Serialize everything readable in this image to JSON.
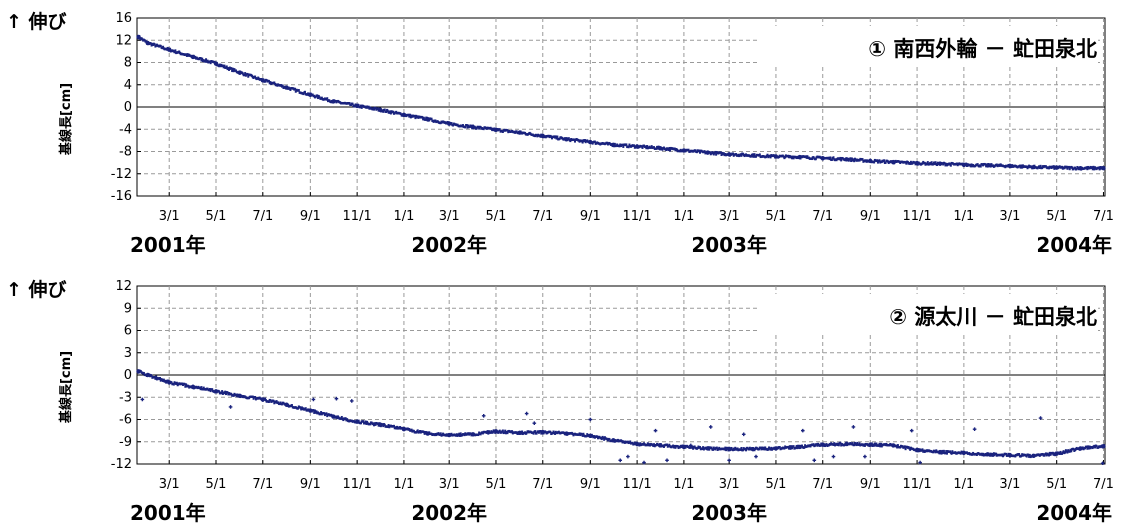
{
  "chart_data": [
    {
      "type": "scatter",
      "title": "① 南西外輪 － 虻田泉北",
      "ylabel": "基線長[cm]",
      "ylabel_note": "↑ 伸び",
      "ylim": [
        -16,
        16
      ],
      "yticks": [
        "16",
        "12",
        "8",
        "4",
        "0",
        "-4",
        "-8",
        "-12",
        "-16"
      ],
      "x_tick_labels": [
        "3/1",
        "5/1",
        "7/1",
        "9/1",
        "11/1",
        "1/1",
        "3/1",
        "5/1",
        "7/1",
        "9/1",
        "11/1",
        "1/1",
        "3/1",
        "5/1",
        "7/1",
        "9/1",
        "11/1",
        "1/1",
        "3/1",
        "5/1",
        "7/1"
      ],
      "x_tick_dates": [
        "2001-03-01",
        "2001-05-01",
        "2001-07-01",
        "2001-09-01",
        "2001-11-01",
        "2002-01-01",
        "2002-03-01",
        "2002-05-01",
        "2002-07-01",
        "2002-09-01",
        "2002-11-01",
        "2003-01-01",
        "2003-03-01",
        "2003-05-01",
        "2003-07-01",
        "2003-09-01",
        "2003-11-01",
        "2004-01-01",
        "2004-03-01",
        "2004-05-01",
        "2004-07-01"
      ],
      "year_labels": [
        "2001年",
        "2002年",
        "2003年",
        "2004年"
      ],
      "xlim": [
        "2001-01-18",
        "2004-07-03"
      ],
      "grid": true,
      "series": [
        {
          "color": "#1a237e",
          "x": [
            "2001-01-20",
            "2001-02-01",
            "2001-03-01",
            "2001-04-01",
            "2001-05-01",
            "2001-06-01",
            "2001-07-01",
            "2001-08-01",
            "2001-09-01",
            "2001-10-01",
            "2001-11-01",
            "2001-12-01",
            "2002-01-01",
            "2002-02-01",
            "2002-03-01",
            "2002-04-01",
            "2002-05-01",
            "2002-06-01",
            "2002-07-01",
            "2002-08-01",
            "2002-09-01",
            "2002-10-01",
            "2002-11-01",
            "2002-12-01",
            "2003-01-01",
            "2003-02-01",
            "2003-03-01",
            "2003-04-01",
            "2003-05-01",
            "2003-06-01",
            "2003-07-01",
            "2003-08-01",
            "2003-09-01",
            "2003-10-01",
            "2003-11-01",
            "2003-12-01",
            "2004-01-01",
            "2004-02-01",
            "2004-03-01",
            "2004-04-01",
            "2004-05-01",
            "2004-06-01",
            "2004-07-01"
          ],
          "y": [
            12.6,
            11.5,
            10.3,
            9.0,
            7.8,
            6.2,
            4.8,
            3.5,
            2.2,
            1.0,
            0.2,
            -0.5,
            -1.4,
            -2.2,
            -3.0,
            -3.6,
            -4.1,
            -4.6,
            -5.2,
            -5.8,
            -6.3,
            -6.8,
            -7.1,
            -7.4,
            -7.8,
            -8.2,
            -8.5,
            -8.7,
            -8.9,
            -9.0,
            -9.2,
            -9.4,
            -9.7,
            -9.9,
            -10.1,
            -10.2,
            -10.4,
            -10.5,
            -10.6,
            -10.8,
            -10.9,
            -11.0,
            -11.0
          ]
        }
      ]
    },
    {
      "type": "scatter",
      "title": "② 源太川 － 虻田泉北",
      "ylabel": "基線長[cm]",
      "ylabel_note": "↑ 伸び",
      "ylim": [
        -12,
        12
      ],
      "yticks": [
        "12",
        "9",
        "6",
        "3",
        "0",
        "-3",
        "-6",
        "-9",
        "-12"
      ],
      "x_tick_labels": [
        "3/1",
        "5/1",
        "7/1",
        "9/1",
        "11/1",
        "1/1",
        "3/1",
        "5/1",
        "7/1",
        "9/1",
        "11/1",
        "1/1",
        "3/1",
        "5/1",
        "7/1",
        "9/1",
        "11/1",
        "1/1",
        "3/1",
        "5/1",
        "7/1"
      ],
      "x_tick_dates": [
        "2001-03-01",
        "2001-05-01",
        "2001-07-01",
        "2001-09-01",
        "2001-11-01",
        "2002-01-01",
        "2002-03-01",
        "2002-05-01",
        "2002-07-01",
        "2002-09-01",
        "2002-11-01",
        "2003-01-01",
        "2003-03-01",
        "2003-05-01",
        "2003-07-01",
        "2003-09-01",
        "2003-11-01",
        "2004-01-01",
        "2004-03-01",
        "2004-05-01",
        "2004-07-01"
      ],
      "year_labels": [
        "2001年",
        "2002年",
        "2003年",
        "2004年"
      ],
      "xlim": [
        "2001-01-18",
        "2004-07-03"
      ],
      "grid": true,
      "series": [
        {
          "color": "#1a237e",
          "x": [
            "2001-01-20",
            "2001-02-01",
            "2001-03-01",
            "2001-04-01",
            "2001-05-01",
            "2001-06-01",
            "2001-07-01",
            "2001-08-01",
            "2001-09-01",
            "2001-10-01",
            "2001-11-01",
            "2001-12-01",
            "2002-01-01",
            "2002-02-01",
            "2002-03-01",
            "2002-04-01",
            "2002-05-01",
            "2002-06-01",
            "2002-07-01",
            "2002-08-01",
            "2002-09-01",
            "2002-10-01",
            "2002-11-01",
            "2002-12-01",
            "2003-01-01",
            "2003-02-01",
            "2003-03-01",
            "2003-04-01",
            "2003-05-01",
            "2003-06-01",
            "2003-07-01",
            "2003-08-01",
            "2003-09-01",
            "2003-10-01",
            "2003-11-01",
            "2003-12-01",
            "2004-01-01",
            "2004-02-01",
            "2004-03-01",
            "2004-04-01",
            "2004-05-01",
            "2004-06-01",
            "2004-07-01"
          ],
          "y": [
            0.5,
            0.0,
            -1.0,
            -1.6,
            -2.2,
            -2.8,
            -3.3,
            -4.0,
            -4.8,
            -5.6,
            -6.3,
            -6.7,
            -7.3,
            -7.9,
            -8.1,
            -8.0,
            -7.6,
            -7.8,
            -7.7,
            -7.9,
            -8.2,
            -8.8,
            -9.3,
            -9.5,
            -9.7,
            -9.9,
            -10.0,
            -10.0,
            -9.9,
            -9.7,
            -9.4,
            -9.3,
            -9.4,
            -9.5,
            -10.1,
            -10.4,
            -10.5,
            -10.7,
            -10.8,
            -10.9,
            -10.6,
            -9.9,
            -9.6
          ]
        },
        {
          "color": "#1a237e",
          "x": [
            "2001-01-25",
            "2001-05-20",
            "2001-09-05",
            "2001-10-05",
            "2001-10-25",
            "2002-04-15",
            "2002-06-10",
            "2002-06-20",
            "2002-09-01",
            "2002-10-10",
            "2002-10-20",
            "2002-11-10",
            "2002-11-25",
            "2002-12-10",
            "2003-01-10",
            "2003-02-05",
            "2003-03-01",
            "2003-03-20",
            "2003-04-05",
            "2003-06-05",
            "2003-06-20",
            "2003-07-15",
            "2003-08-10",
            "2003-08-25",
            "2003-10-25",
            "2003-11-05",
            "2004-01-15",
            "2004-04-10",
            "2004-06-30"
          ],
          "y": [
            -3.3,
            -4.3,
            -3.3,
            -3.2,
            -3.5,
            -5.5,
            -5.2,
            -6.5,
            -6.0,
            -11.5,
            -11.0,
            -11.8,
            -7.5,
            -11.5,
            -9.5,
            -7.0,
            -11.5,
            -8.0,
            -11.0,
            -7.5,
            -11.5,
            -11.0,
            -7.0,
            -11.0,
            -7.5,
            -11.8,
            -7.3,
            -5.8,
            -11.9
          ]
        }
      ]
    }
  ]
}
